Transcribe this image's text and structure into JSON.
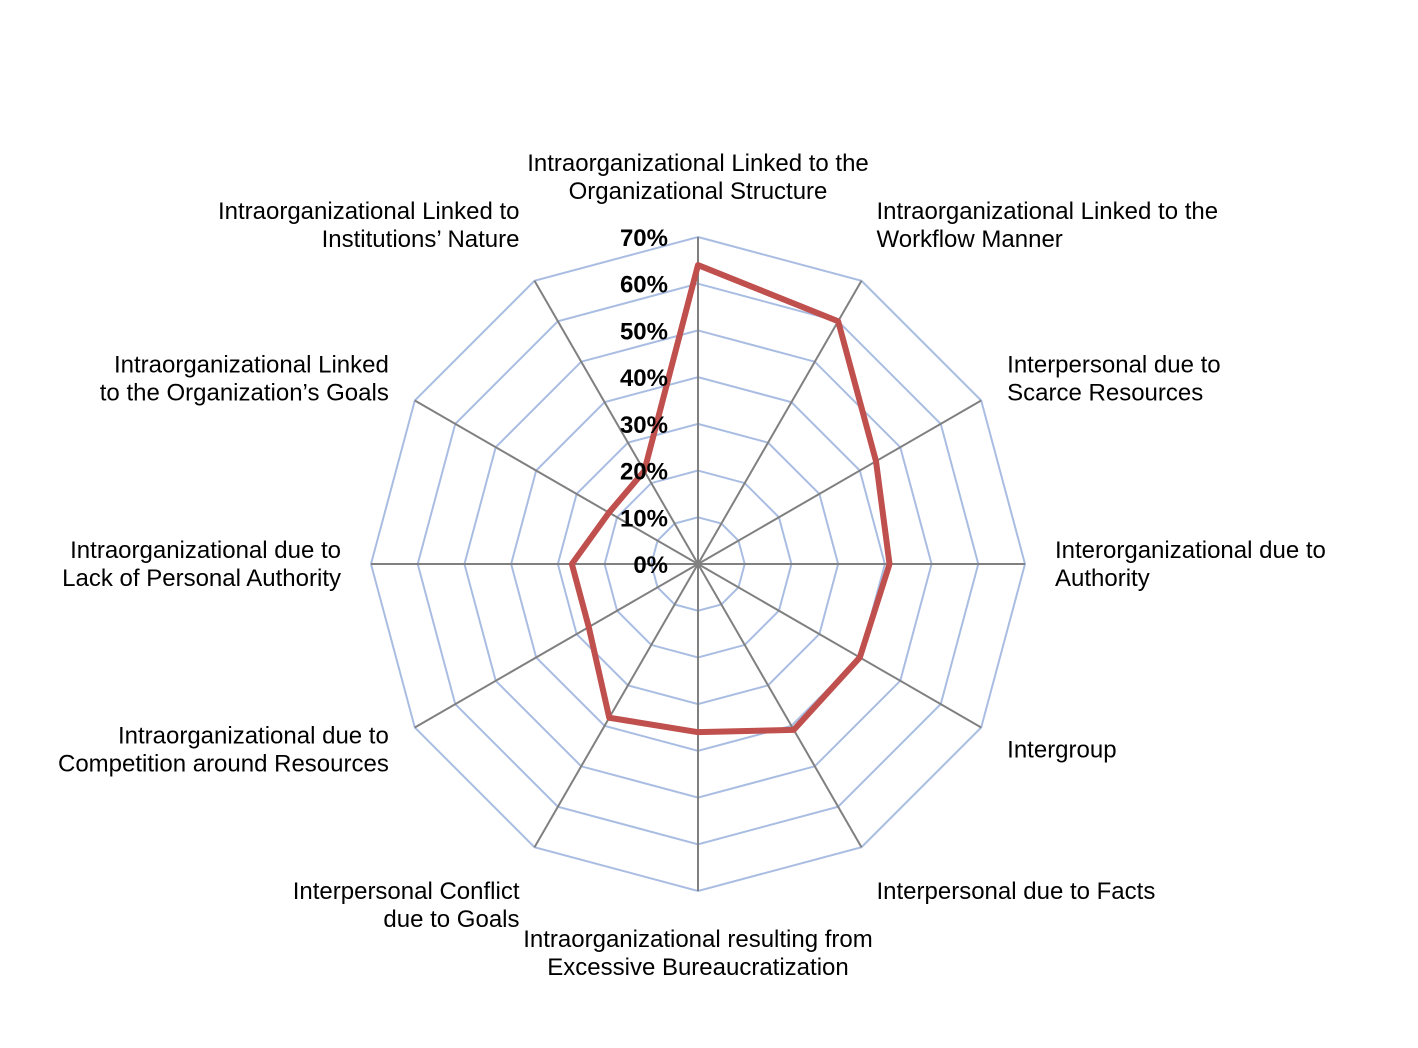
{
  "chart_data": {
    "type": "radar",
    "title": "",
    "categories": [
      "Intraorganizational Linked to the\nOrganizational Structure",
      "Intraorganizational Linked to the\nWorkflow Manner",
      "Interpersonal due to\nScarce Resources",
      "Interorganizational due to\nAuthority",
      "Intergroup",
      "Interpersonal due to Facts",
      "Intraorganizational resulting from\nExcessive Bureaucratization",
      "Interpersonal Conflict\ndue to Goals",
      "Intraorganizational due to\nCompetition around Resources",
      "Intraorganizational due to\nLack of Personal Authority",
      "Intraorganizational Linked\nto the Organization’s Goals",
      "Intraorganizational Linked to\nInstitutions’ Nature"
    ],
    "series": [
      {
        "values": [
          64,
          60,
          44,
          41,
          40,
          41,
          36,
          38,
          27,
          27,
          22,
          23
        ],
        "color": "#c0504d"
      }
    ],
    "rlim": [
      0,
      70
    ],
    "ticks": [
      "0%",
      "10%",
      "20%",
      "30%",
      "40%",
      "50%",
      "60%",
      "70%"
    ],
    "grid": true,
    "gridline_color": "#a9bde3",
    "spoke_color": "#808080",
    "legend": "none"
  }
}
